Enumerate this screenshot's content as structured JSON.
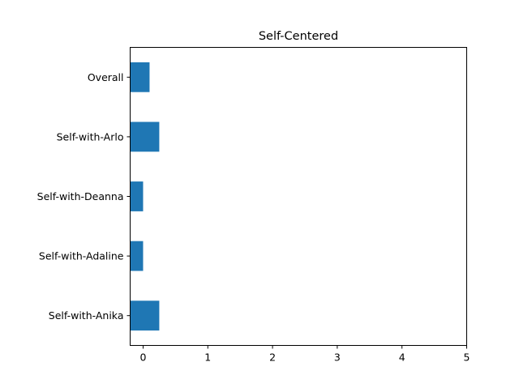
{
  "chart_data": {
    "type": "bar",
    "orientation": "horizontal",
    "title": "Self-Centered",
    "xlabel": "",
    "ylabel": "",
    "categories": [
      "Overall",
      "Self-with-Arlo",
      "Self-with-Deanna",
      "Self-with-Adaline",
      "Self-with-Anika"
    ],
    "values": [
      0.1,
      0.25,
      0.0,
      0.0,
      0.25
    ],
    "xlim": [
      -0.2,
      5
    ],
    "xticks": [
      0,
      1,
      2,
      3,
      4,
      5
    ],
    "xtick_labels": [
      "0",
      "1",
      "2",
      "3",
      "4",
      "5"
    ],
    "bar_color": "#1f77b4",
    "grid": false,
    "legend": "none"
  }
}
